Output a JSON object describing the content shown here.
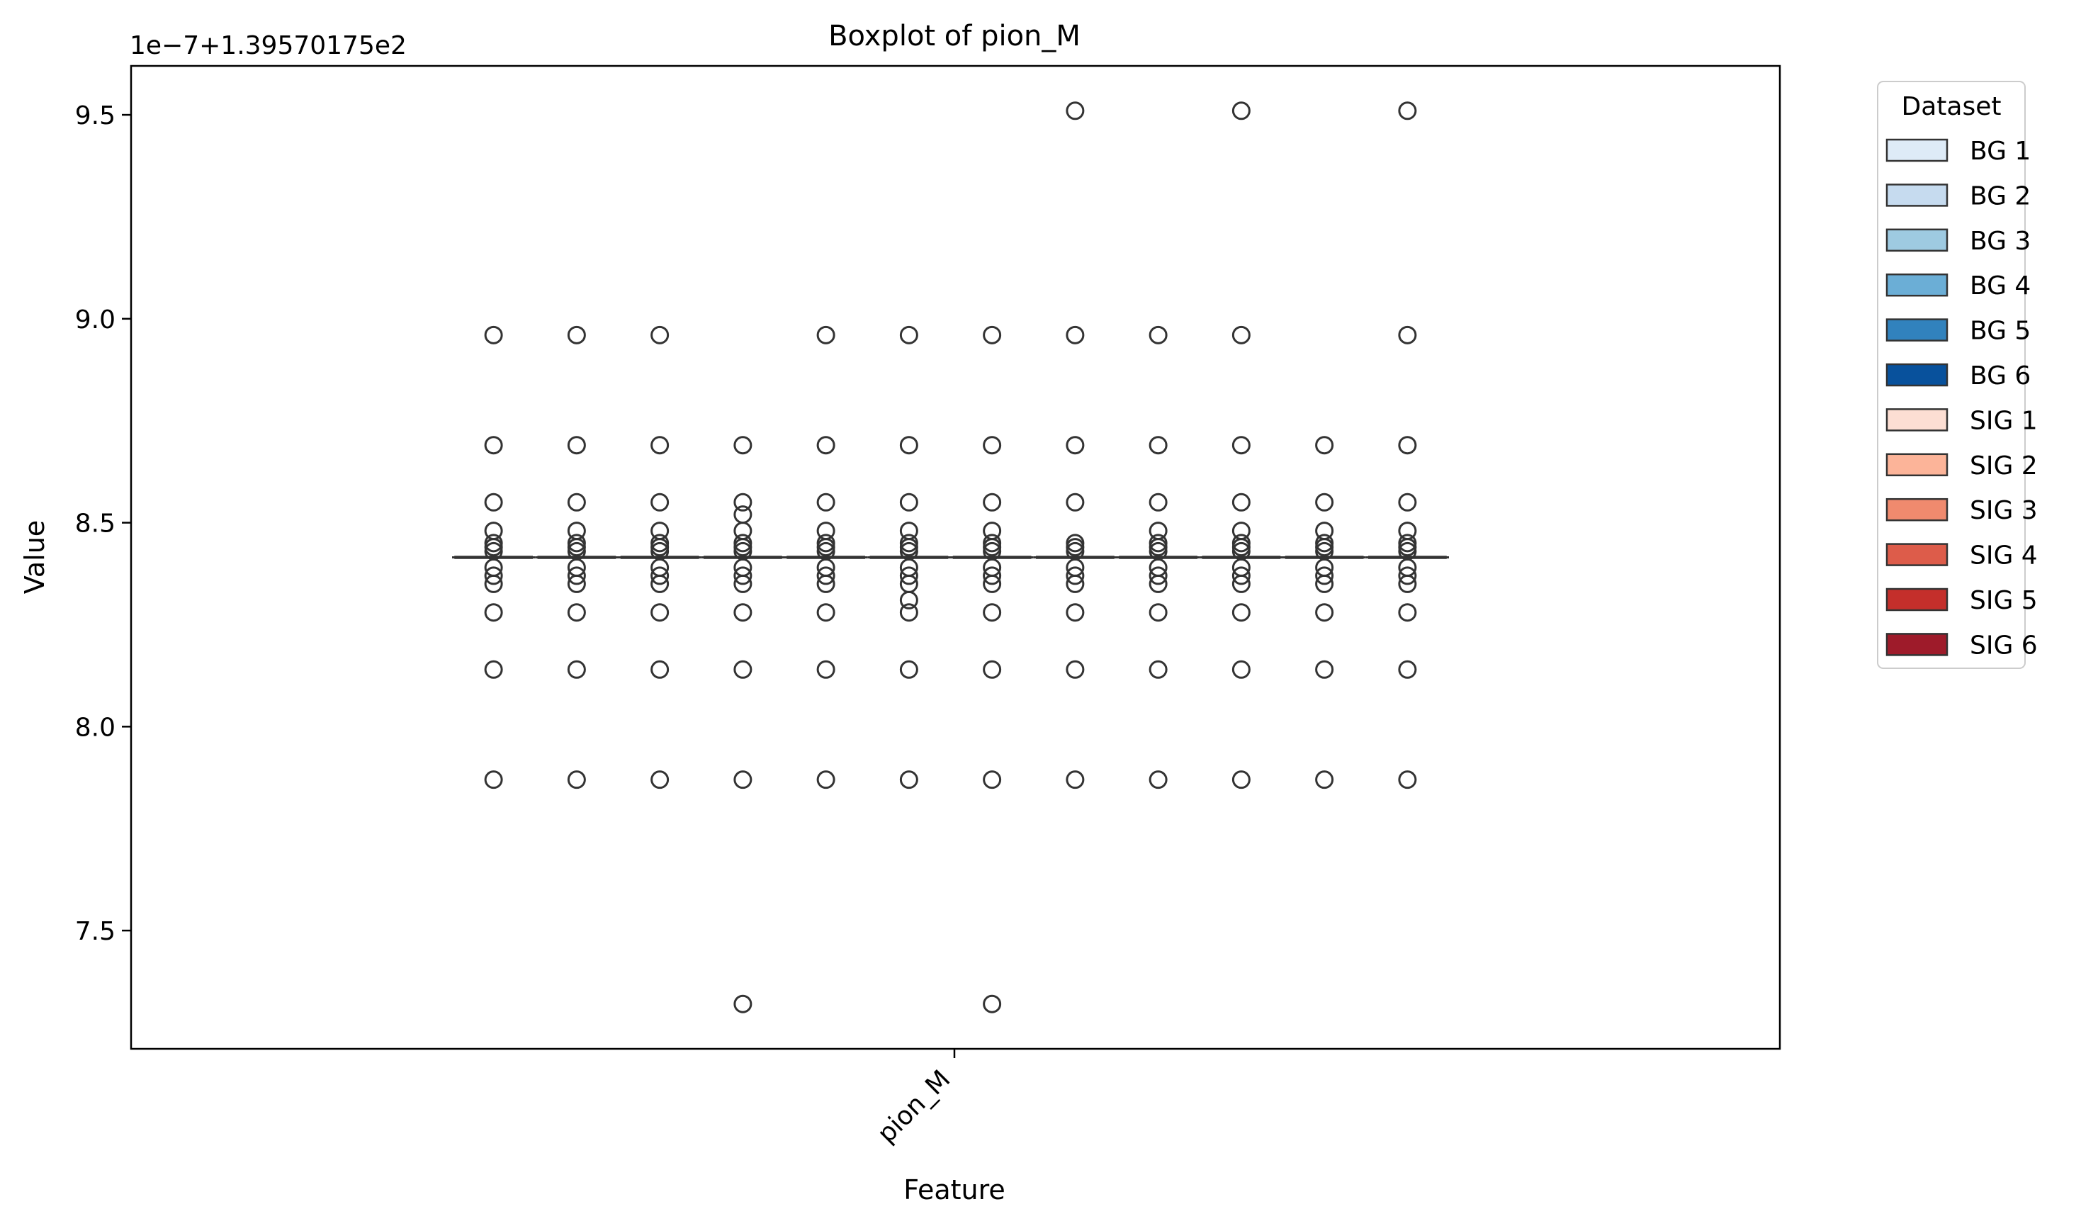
{
  "chart_data": {
    "type": "box",
    "title": "Boxplot of pion_M",
    "xlabel": "Feature",
    "ylabel": "Value",
    "offset_label": "1e−7+1.39570175e2",
    "categories": [
      "pion_M"
    ],
    "ylim": [
      7.21,
      9.62
    ],
    "yticks": [
      "7.5",
      "8.0",
      "8.5",
      "9.0",
      "9.5"
    ],
    "ytick_values": [
      7.5,
      8.0,
      8.5,
      9.0,
      9.5
    ],
    "median": 8.415,
    "legend": {
      "title": "Dataset",
      "placement": "outside-right"
    },
    "series": [
      {
        "name": "BG 1",
        "color": "#deebf7",
        "outliers": [
          7.87,
          8.14,
          8.28,
          8.35,
          8.37,
          8.39,
          8.43,
          8.44,
          8.45,
          8.48,
          8.55,
          8.69,
          8.96
        ]
      },
      {
        "name": "BG 2",
        "color": "#c6dbef",
        "outliers": [
          7.87,
          8.14,
          8.28,
          8.35,
          8.37,
          8.39,
          8.43,
          8.44,
          8.45,
          8.48,
          8.55,
          8.69,
          8.96
        ]
      },
      {
        "name": "BG 3",
        "color": "#9ecae1",
        "outliers": [
          7.87,
          8.14,
          8.28,
          8.35,
          8.37,
          8.39,
          8.43,
          8.44,
          8.45,
          8.48,
          8.55,
          8.69,
          8.96
        ]
      },
      {
        "name": "BG 4",
        "color": "#6baed6",
        "outliers": [
          7.32,
          7.87,
          8.14,
          8.28,
          8.35,
          8.37,
          8.39,
          8.43,
          8.44,
          8.45,
          8.48,
          8.52,
          8.55,
          8.69
        ]
      },
      {
        "name": "BG 5",
        "color": "#3182bd",
        "outliers": [
          7.87,
          8.14,
          8.28,
          8.35,
          8.37,
          8.39,
          8.43,
          8.44,
          8.45,
          8.48,
          8.55,
          8.69,
          8.96
        ]
      },
      {
        "name": "BG 6",
        "color": "#08519c",
        "outliers": [
          7.87,
          8.14,
          8.28,
          8.31,
          8.35,
          8.37,
          8.39,
          8.43,
          8.44,
          8.45,
          8.48,
          8.55,
          8.69,
          8.96
        ]
      },
      {
        "name": "SIG 1",
        "color": "#fcded3",
        "outliers": [
          7.32,
          7.87,
          8.14,
          8.28,
          8.35,
          8.37,
          8.39,
          8.43,
          8.44,
          8.45,
          8.48,
          8.55,
          8.69,
          8.96
        ]
      },
      {
        "name": "SIG 2",
        "color": "#fcb499",
        "outliers": [
          7.87,
          8.14,
          8.28,
          8.35,
          8.37,
          8.39,
          8.43,
          8.44,
          8.45,
          8.55,
          8.69,
          8.96,
          9.51
        ]
      },
      {
        "name": "SIG 3",
        "color": "#f08a6e",
        "outliers": [
          7.87,
          8.14,
          8.28,
          8.35,
          8.37,
          8.39,
          8.43,
          8.44,
          8.45,
          8.48,
          8.55,
          8.69,
          8.96
        ]
      },
      {
        "name": "SIG 4",
        "color": "#dd5c4a",
        "outliers": [
          7.87,
          8.14,
          8.28,
          8.35,
          8.37,
          8.39,
          8.43,
          8.44,
          8.45,
          8.48,
          8.55,
          8.69,
          8.96,
          9.51
        ]
      },
      {
        "name": "SIG 5",
        "color": "#c42f2b",
        "outliers": [
          7.87,
          8.14,
          8.28,
          8.35,
          8.37,
          8.39,
          8.43,
          8.44,
          8.45,
          8.48,
          8.55,
          8.69
        ]
      },
      {
        "name": "SIG 6",
        "color": "#9e1b2a",
        "outliers": [
          7.87,
          8.14,
          8.28,
          8.35,
          8.37,
          8.39,
          8.43,
          8.44,
          8.45,
          8.48,
          8.55,
          8.69,
          8.96,
          9.51
        ]
      }
    ]
  }
}
